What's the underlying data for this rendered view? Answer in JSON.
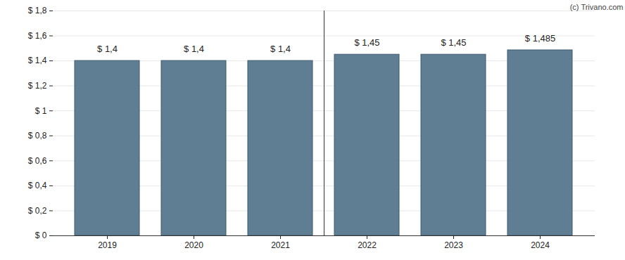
{
  "chart_data": {
    "type": "bar",
    "credit": "(c) Trivano.com",
    "categories": [
      "2019",
      "2020",
      "2021",
      "2022",
      "2023",
      "2024"
    ],
    "values": [
      1.4,
      1.4,
      1.4,
      1.45,
      1.45,
      1.485
    ],
    "value_labels": [
      "$ 1,4",
      "$ 1,4",
      "$ 1,4",
      "$ 1,45",
      "$ 1,45",
      "$ 1,485"
    ],
    "data_labels": true,
    "color": "#5f7e93",
    "ylim": [
      0,
      1.8
    ],
    "yticks": [
      {
        "value": 0,
        "label": "$ 0"
      },
      {
        "value": 0.2,
        "label": "$ 0,2"
      },
      {
        "value": 0.4,
        "label": "$ 0,4"
      },
      {
        "value": 0.6,
        "label": "$ 0,6"
      },
      {
        "value": 0.8,
        "label": "$ 0,8"
      },
      {
        "value": 1,
        "label": "$ 1"
      },
      {
        "value": 1.2,
        "label": "$ 1,2"
      },
      {
        "value": 1.4,
        "label": "$ 1,4"
      },
      {
        "value": 1.6,
        "label": "$ 1,6"
      },
      {
        "value": 1.8,
        "label": "$ 1,8"
      }
    ],
    "grid": true
  }
}
